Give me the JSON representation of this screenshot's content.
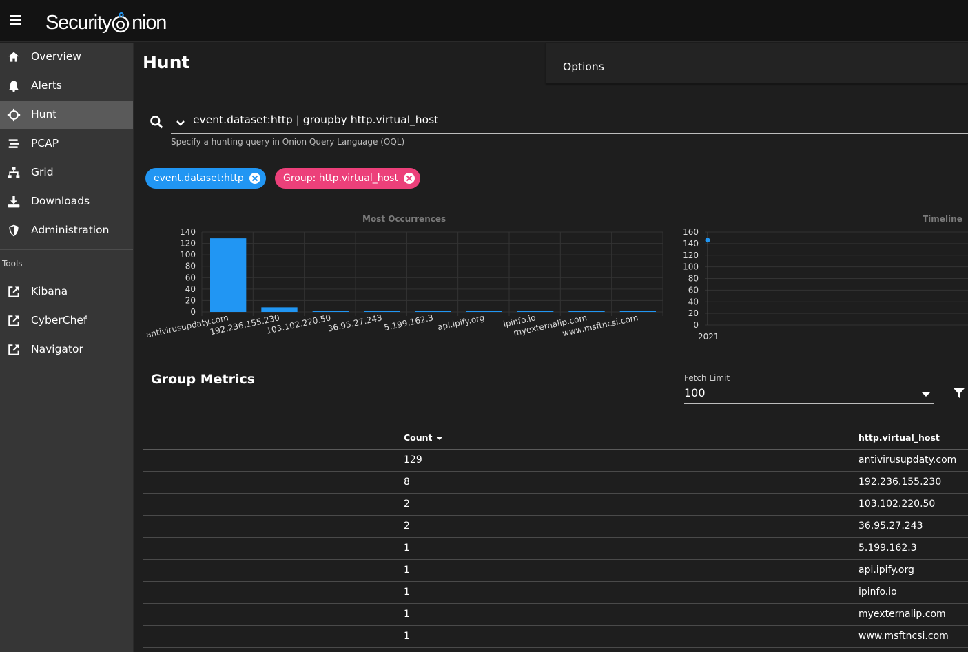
{
  "appbar": {
    "logo_text": "Security",
    "logo_text2": "nion"
  },
  "sidebar": {
    "items": [
      {
        "label": "Overview",
        "icon": "home-icon"
      },
      {
        "label": "Alerts",
        "icon": "bell-icon"
      },
      {
        "label": "Hunt",
        "icon": "crosshairs-icon",
        "active": true
      },
      {
        "label": "PCAP",
        "icon": "stream-icon"
      },
      {
        "label": "Grid",
        "icon": "sitemap-icon"
      },
      {
        "label": "Downloads",
        "icon": "download-icon"
      },
      {
        "label": "Administration",
        "icon": "shield-icon"
      }
    ],
    "tools_heading": "Tools",
    "tools": [
      {
        "label": "Kibana",
        "icon": "external-link-icon"
      },
      {
        "label": "CyberChef",
        "icon": "external-link-icon"
      },
      {
        "label": "Navigator",
        "icon": "external-link-icon"
      }
    ]
  },
  "main": {
    "title": "Hunt",
    "options_label": "Options",
    "query": "event.dataset:http | groupby http.virtual_host",
    "query_hint": "Specify a hunting query in Onion Query Language (OQL)",
    "chips": [
      "event.dataset:http",
      "Group: http.virtual_host"
    ],
    "section_title": "Group Metrics",
    "fetch_limit_label": "Fetch Limit",
    "fetch_limit_value": "100",
    "table": {
      "headers": [
        "Count",
        "http.virtual_host"
      ],
      "rows": [
        [
          "129",
          "antivirusupdaty.com"
        ],
        [
          "8",
          "192.236.155.230"
        ],
        [
          "2",
          "103.102.220.50"
        ],
        [
          "2",
          "36.95.27.243"
        ],
        [
          "1",
          "5.199.162.3"
        ],
        [
          "1",
          "api.ipify.org"
        ],
        [
          "1",
          "ipinfo.io"
        ],
        [
          "1",
          "myexternalip.com"
        ],
        [
          "1",
          "www.msftncsi.com"
        ]
      ]
    }
  },
  "chart_data": [
    {
      "type": "bar",
      "title": "Most Occurrences",
      "categories": [
        "antivirusupdaty.com",
        "192.236.155.230",
        "103.102.220.50",
        "36.95.27.243",
        "5.199.162.3",
        "api.ipify.org",
        "ipinfo.io",
        "myexternalip.com",
        "www.msftncsi.com"
      ],
      "values": [
        129,
        8,
        2,
        2,
        1,
        1,
        1,
        1,
        1
      ],
      "ylim": [
        0,
        140
      ],
      "yticks": [
        0,
        20,
        40,
        60,
        80,
        100,
        120,
        140
      ],
      "color": "#2196f3",
      "grid": true
    },
    {
      "type": "scatter",
      "title": "Timeline",
      "x": [
        "2021"
      ],
      "y": [
        146
      ],
      "ylim": [
        0,
        160
      ],
      "yticks": [
        0,
        20,
        40,
        60,
        80,
        100,
        120,
        140,
        160
      ],
      "xticks": [
        "2021"
      ],
      "color": "#2196f3",
      "grid": true
    }
  ]
}
